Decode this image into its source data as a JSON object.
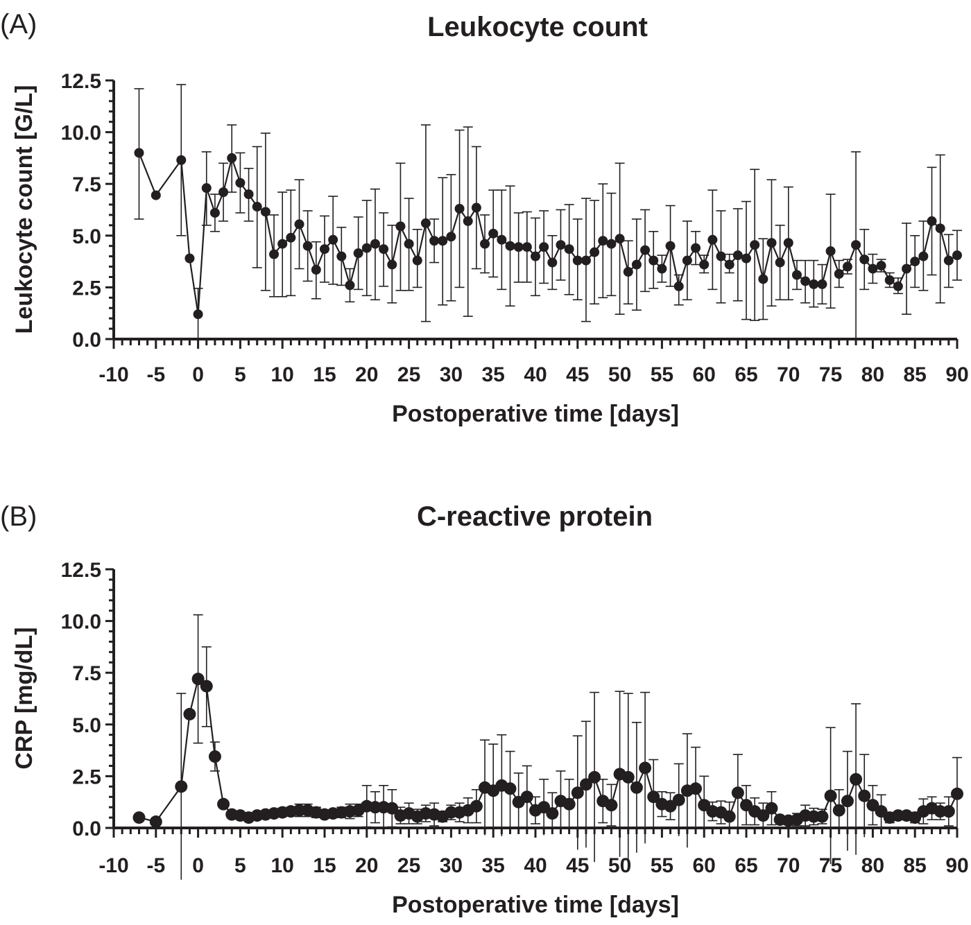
{
  "chart_data": [
    {
      "type": "line",
      "panel_label": "(A)",
      "title": "Leukocyte count",
      "xlabel": "Postoperative time [days]",
      "ylabel": "Leukocyte count [G/L]",
      "xlim": [
        -10,
        90
      ],
      "ylim": [
        0,
        12.5
      ],
      "x_ticks": [
        -10,
        -5,
        0,
        5,
        10,
        15,
        20,
        25,
        30,
        35,
        40,
        45,
        50,
        55,
        60,
        65,
        70,
        75,
        80,
        85,
        90
      ],
      "x_tick_labels": [
        "-10",
        "-5",
        "0",
        "5",
        "10",
        "15",
        "20",
        "25",
        "30",
        "35",
        "40",
        "45",
        "50",
        "55",
        "60",
        "65",
        "70",
        "75",
        "80",
        "85",
        "90"
      ],
      "y_ticks": [
        0,
        2.5,
        5,
        7.5,
        10,
        12.5
      ],
      "y_tick_labels": [
        "0.0",
        "2.5",
        "5.0",
        "7.5",
        "10.0",
        "12.5"
      ],
      "color": "#231f20",
      "x": [
        -7,
        -5,
        -2,
        -1,
        0,
        1,
        2,
        3,
        4,
        5,
        6,
        7,
        8,
        9,
        10,
        11,
        12,
        13,
        14,
        15,
        16,
        17,
        18,
        19,
        20,
        21,
        22,
        23,
        24,
        25,
        26,
        27,
        28,
        29,
        30,
        31,
        32,
        33,
        34,
        35,
        36,
        37,
        38,
        39,
        40,
        41,
        42,
        43,
        44,
        45,
        46,
        47,
        48,
        49,
        50,
        51,
        52,
        53,
        54,
        55,
        56,
        57,
        58,
        59,
        60,
        61,
        62,
        63,
        64,
        65,
        66,
        67,
        68,
        69,
        70,
        71,
        72,
        73,
        74,
        75,
        76,
        77,
        78,
        79,
        80,
        81,
        82,
        83,
        84,
        85,
        86,
        87,
        88,
        89,
        90
      ],
      "y": [
        9.0,
        6.95,
        8.65,
        3.9,
        1.2,
        7.3,
        6.1,
        7.1,
        8.75,
        7.55,
        7.0,
        6.4,
        6.15,
        4.1,
        4.6,
        4.9,
        5.55,
        4.5,
        3.35,
        4.35,
        4.8,
        4.0,
        2.6,
        4.15,
        4.4,
        4.6,
        4.35,
        3.6,
        5.45,
        4.6,
        3.8,
        5.6,
        4.75,
        4.75,
        4.95,
        6.3,
        5.7,
        6.35,
        4.6,
        5.1,
        4.8,
        4.5,
        4.45,
        4.45,
        4.0,
        4.45,
        3.7,
        4.55,
        4.35,
        3.8,
        3.8,
        4.2,
        4.75,
        4.6,
        4.85,
        3.25,
        3.6,
        4.3,
        3.8,
        3.4,
        4.5,
        2.55,
        3.8,
        4.4,
        3.6,
        4.8,
        4.0,
        3.6,
        4.05,
        3.9,
        4.55,
        2.9,
        4.65,
        3.7,
        4.65,
        3.1,
        2.8,
        2.65,
        2.65,
        4.25,
        3.15,
        3.5,
        4.55,
        3.85,
        3.4,
        3.55,
        2.85,
        2.55,
        3.4,
        3.75,
        4.0,
        5.7,
        5.35,
        3.8,
        4.05
      ],
      "err_upper": [
        12.1,
        null,
        12.3,
        null,
        2.45,
        9.05,
        7.0,
        8.5,
        10.35,
        9.0,
        8.25,
        9.3,
        9.95,
        6.0,
        7.1,
        7.2,
        7.7,
        6.2,
        4.7,
        5.95,
        6.9,
        5.4,
        3.4,
        5.9,
        6.7,
        7.25,
        6.1,
        5.5,
        8.5,
        6.8,
        5.3,
        10.35,
        5.8,
        7.8,
        7.95,
        10.1,
        10.25,
        9.3,
        6.0,
        7.2,
        7.2,
        7.4,
        6.1,
        6.15,
        5.85,
        6.2,
        5.0,
        6.25,
        6.5,
        5.8,
        6.8,
        6.7,
        7.5,
        7.05,
        8.5,
        4.75,
        5.8,
        6.25,
        5.2,
        4.05,
        6.45,
        3.1,
        5.7,
        5.2,
        4.05,
        7.2,
        6.2,
        4.1,
        6.3,
        6.65,
        8.2,
        4.85,
        7.7,
        5.5,
        7.35,
        3.8,
        3.8,
        3.8,
        3.6,
        7.0,
        3.8,
        3.85,
        9.05,
        5.3,
        4.1,
        3.85,
        3.2,
        2.95,
        5.6,
        5.0,
        5.7,
        8.3,
        8.9,
        5.05,
        5.25
      ],
      "err_lower": [
        5.8,
        null,
        5.0,
        null,
        0.0,
        5.5,
        5.2,
        5.7,
        7.1,
        6.1,
        5.7,
        3.45,
        2.35,
        2.05,
        2.05,
        2.1,
        3.4,
        2.8,
        1.95,
        2.75,
        2.65,
        2.6,
        1.8,
        2.4,
        2.1,
        1.9,
        2.55,
        1.75,
        2.35,
        2.35,
        2.5,
        0.85,
        3.7,
        1.65,
        1.85,
        2.5,
        1.1,
        3.4,
        3.2,
        3.0,
        2.4,
        1.6,
        2.75,
        2.75,
        2.1,
        2.7,
        2.4,
        2.85,
        2.15,
        1.9,
        0.85,
        1.7,
        2.0,
        2.1,
        1.2,
        1.7,
        1.4,
        2.3,
        2.45,
        2.75,
        2.55,
        1.65,
        1.9,
        3.6,
        3.2,
        2.4,
        1.75,
        3.2,
        1.85,
        0.95,
        0.9,
        0.95,
        1.6,
        1.9,
        1.9,
        2.4,
        1.75,
        1.55,
        1.7,
        1.5,
        2.5,
        3.15,
        0.0,
        2.4,
        2.7,
        3.25,
        2.5,
        2.2,
        1.2,
        2.5,
        2.35,
        3.1,
        1.75,
        2.5,
        2.85
      ]
    },
    {
      "type": "line",
      "panel_label": "(B)",
      "title": "C-reactive protein",
      "xlabel": "Postoperative time [days]",
      "ylabel": "CRP [mg/dL]",
      "xlim": [
        -10,
        90
      ],
      "ylim": [
        0,
        12.5
      ],
      "x_ticks": [
        -10,
        -5,
        0,
        5,
        10,
        15,
        20,
        25,
        30,
        35,
        40,
        45,
        50,
        55,
        60,
        65,
        70,
        75,
        80,
        85,
        90
      ],
      "x_tick_labels": [
        "-10",
        "-5",
        "0",
        "5",
        "10",
        "15",
        "20",
        "25",
        "30",
        "35",
        "40",
        "45",
        "50",
        "55",
        "60",
        "65",
        "70",
        "75",
        "80",
        "85",
        "90"
      ],
      "y_ticks": [
        0,
        2.5,
        5,
        7.5,
        10,
        12.5
      ],
      "y_tick_labels": [
        "0.0",
        "2.5",
        "5.0",
        "7.5",
        "10.0",
        "12.5"
      ],
      "color": "#231f20",
      "x": [
        -7,
        -5,
        -2,
        -1,
        0,
        1,
        2,
        3,
        4,
        5,
        6,
        7,
        8,
        9,
        10,
        11,
        12,
        13,
        14,
        15,
        16,
        17,
        18,
        19,
        20,
        21,
        22,
        23,
        24,
        25,
        26,
        27,
        28,
        29,
        30,
        31,
        32,
        33,
        34,
        35,
        36,
        37,
        38,
        39,
        40,
        41,
        42,
        43,
        44,
        45,
        46,
        47,
        48,
        49,
        50,
        51,
        52,
        53,
        54,
        55,
        56,
        57,
        58,
        59,
        60,
        61,
        62,
        63,
        64,
        65,
        66,
        67,
        68,
        69,
        70,
        71,
        72,
        73,
        74,
        75,
        76,
        77,
        78,
        79,
        80,
        81,
        82,
        83,
        84,
        85,
        86,
        87,
        88,
        89,
        90
      ],
      "y": [
        0.5,
        0.3,
        2.0,
        5.5,
        7.2,
        6.85,
        3.45,
        1.15,
        0.65,
        0.6,
        0.5,
        0.6,
        0.65,
        0.7,
        0.75,
        0.8,
        0.85,
        0.85,
        0.75,
        0.65,
        0.7,
        0.75,
        0.8,
        0.85,
        1.05,
        1.0,
        1.0,
        0.95,
        0.6,
        0.7,
        0.55,
        0.7,
        0.65,
        0.55,
        0.75,
        0.75,
        0.85,
        1.05,
        1.95,
        1.8,
        2.05,
        1.9,
        1.25,
        1.5,
        0.85,
        1.0,
        0.7,
        1.3,
        1.15,
        1.7,
        2.1,
        2.45,
        1.3,
        1.1,
        2.6,
        2.45,
        1.95,
        2.9,
        1.5,
        1.15,
        1.05,
        1.35,
        1.8,
        1.9,
        1.1,
        0.8,
        0.75,
        0.55,
        1.7,
        1.1,
        0.8,
        0.6,
        0.95,
        0.4,
        0.35,
        0.4,
        0.6,
        0.55,
        0.55,
        1.55,
        0.85,
        1.3,
        2.35,
        1.55,
        1.1,
        0.8,
        0.5,
        0.6,
        0.6,
        0.5,
        0.8,
        0.95,
        0.8,
        0.8,
        1.65
      ],
      "err_upper": [
        null,
        null,
        6.5,
        null,
        10.3,
        8.75,
        4.15,
        null,
        null,
        null,
        null,
        null,
        null,
        0.85,
        0.95,
        1.0,
        1.15,
        1.15,
        1.0,
        0.8,
        0.85,
        1.0,
        1.15,
        1.15,
        2.05,
        1.75,
        2.05,
        1.85,
        1.0,
        1.2,
        0.9,
        1.1,
        1.2,
        0.8,
        1.1,
        1.2,
        1.45,
        1.85,
        4.25,
        4.05,
        4.5,
        3.7,
        2.65,
        3.0,
        1.5,
        2.35,
        1.7,
        2.75,
        2.35,
        4.45,
        5.15,
        6.55,
        2.35,
        2.1,
        6.6,
        6.5,
        5.1,
        6.55,
        3.3,
        1.75,
        1.7,
        3.1,
        4.55,
        3.9,
        2.5,
        1.25,
        1.3,
        1.25,
        3.55,
        2.05,
        1.45,
        1.2,
        1.75,
        0.55,
        0.55,
        0.7,
        1.1,
        0.95,
        0.9,
        4.85,
        1.85,
        3.7,
        6.0,
        3.55,
        2.05,
        1.6,
        0.75,
        0.75,
        0.75,
        0.75,
        1.4,
        1.5,
        1.2,
        1.5,
        3.4
      ],
      "err_lower": [
        null,
        null,
        -2.5,
        null,
        4.1,
        4.9,
        2.75,
        null,
        null,
        null,
        null,
        null,
        null,
        0.55,
        0.55,
        0.6,
        0.55,
        0.55,
        0.5,
        0.5,
        0.55,
        0.5,
        0.45,
        0.55,
        0.05,
        0.25,
        -0.05,
        0.05,
        0.2,
        0.2,
        0.2,
        0.3,
        0.1,
        0.3,
        0.4,
        0.3,
        0.25,
        0.25,
        -0.35,
        -0.45,
        -0.4,
        -0.1,
        -0.15,
        0.0,
        0.2,
        -0.35,
        -0.3,
        -0.15,
        -0.05,
        -1.05,
        -0.95,
        -1.65,
        0.25,
        0.1,
        -1.4,
        -1.6,
        -1.2,
        -0.75,
        -0.3,
        0.55,
        0.4,
        -0.4,
        -0.95,
        -0.1,
        -0.3,
        0.35,
        0.2,
        -0.15,
        -0.15,
        0.15,
        0.15,
        0.0,
        0.15,
        0.25,
        0.15,
        0.1,
        0.1,
        0.15,
        0.2,
        -1.75,
        -0.15,
        -1.1,
        -1.3,
        -0.45,
        0.15,
        0.0,
        0.25,
        0.45,
        0.45,
        0.25,
        0.2,
        0.4,
        0.4,
        0.1,
        -0.1
      ]
    }
  ]
}
